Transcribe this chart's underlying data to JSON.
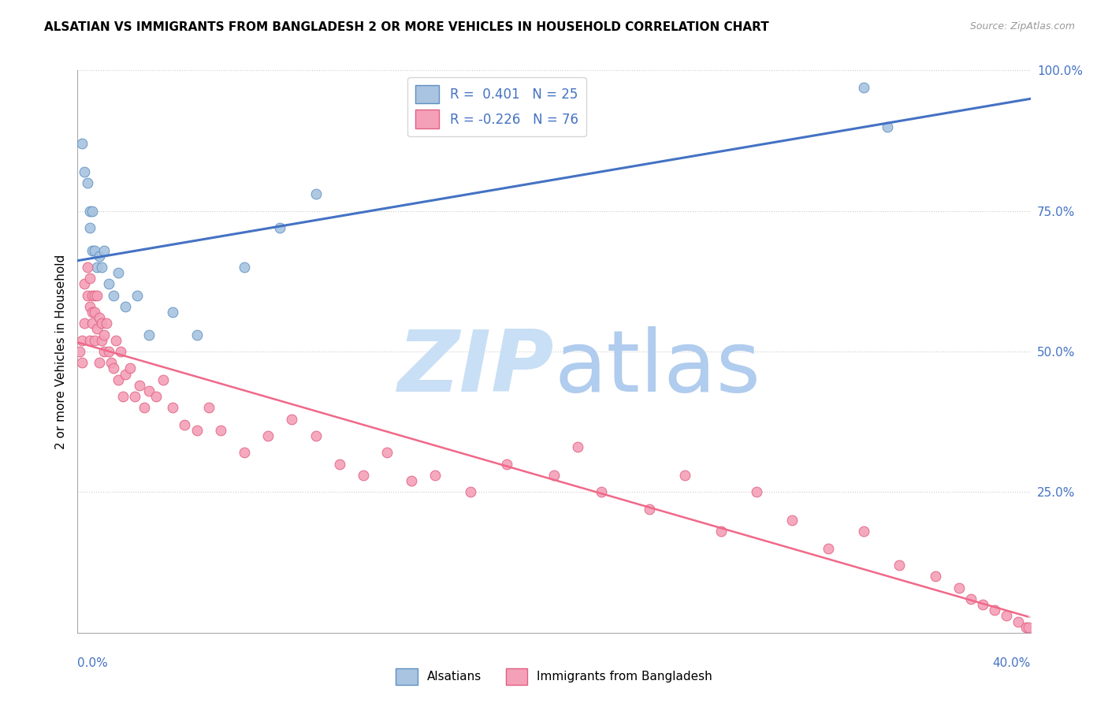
{
  "title": "ALSATIAN VS IMMIGRANTS FROM BANGLADESH 2 OR MORE VEHICLES IN HOUSEHOLD CORRELATION CHART",
  "source": "Source: ZipAtlas.com",
  "legend_label_blue": "Alsatians",
  "legend_label_pink": "Immigrants from Bangladesh",
  "blue_scatter_color": "#a8c4e0",
  "blue_scatter_edge": "#6090c0",
  "pink_scatter_color": "#f4a0b8",
  "pink_scatter_edge": "#e06080",
  "blue_line_color": "#4472c4",
  "pink_line_color": "#f06888",
  "pink_dashed_color": "#f0b0c8",
  "text_color": "#4472c4",
  "watermark_zip_color": "#c8dff5",
  "watermark_atlas_color": "#b0ccee",
  "xlim": [
    0.0,
    0.4
  ],
  "ylim": [
    0.0,
    1.0
  ],
  "blue_x": [
    0.002,
    0.003,
    0.004,
    0.005,
    0.005,
    0.006,
    0.006,
    0.007,
    0.008,
    0.009,
    0.01,
    0.011,
    0.013,
    0.015,
    0.017,
    0.02,
    0.025,
    0.03,
    0.04,
    0.05,
    0.07,
    0.085,
    0.1,
    0.33,
    0.34
  ],
  "blue_y": [
    0.87,
    0.82,
    0.8,
    0.75,
    0.72,
    0.75,
    0.68,
    0.68,
    0.65,
    0.67,
    0.65,
    0.68,
    0.62,
    0.6,
    0.64,
    0.58,
    0.6,
    0.53,
    0.57,
    0.53,
    0.65,
    0.72,
    0.78,
    0.97,
    0.9
  ],
  "pink_x": [
    0.001,
    0.002,
    0.002,
    0.003,
    0.003,
    0.004,
    0.004,
    0.005,
    0.005,
    0.005,
    0.006,
    0.006,
    0.006,
    0.007,
    0.007,
    0.007,
    0.008,
    0.008,
    0.009,
    0.009,
    0.01,
    0.01,
    0.011,
    0.011,
    0.012,
    0.013,
    0.014,
    0.015,
    0.016,
    0.017,
    0.018,
    0.019,
    0.02,
    0.022,
    0.024,
    0.026,
    0.028,
    0.03,
    0.033,
    0.036,
    0.04,
    0.045,
    0.05,
    0.055,
    0.06,
    0.07,
    0.08,
    0.09,
    0.1,
    0.11,
    0.12,
    0.13,
    0.14,
    0.15,
    0.165,
    0.18,
    0.2,
    0.21,
    0.22,
    0.24,
    0.255,
    0.27,
    0.285,
    0.3,
    0.315,
    0.33,
    0.345,
    0.36,
    0.37,
    0.375,
    0.38,
    0.385,
    0.39,
    0.395,
    0.398,
    0.399
  ],
  "pink_y": [
    0.5,
    0.52,
    0.48,
    0.62,
    0.55,
    0.6,
    0.65,
    0.58,
    0.52,
    0.63,
    0.57,
    0.6,
    0.55,
    0.57,
    0.52,
    0.6,
    0.54,
    0.6,
    0.56,
    0.48,
    0.52,
    0.55,
    0.5,
    0.53,
    0.55,
    0.5,
    0.48,
    0.47,
    0.52,
    0.45,
    0.5,
    0.42,
    0.46,
    0.47,
    0.42,
    0.44,
    0.4,
    0.43,
    0.42,
    0.45,
    0.4,
    0.37,
    0.36,
    0.4,
    0.36,
    0.32,
    0.35,
    0.38,
    0.35,
    0.3,
    0.28,
    0.32,
    0.27,
    0.28,
    0.25,
    0.3,
    0.28,
    0.33,
    0.25,
    0.22,
    0.28,
    0.18,
    0.25,
    0.2,
    0.15,
    0.18,
    0.12,
    0.1,
    0.08,
    0.06,
    0.05,
    0.04,
    0.03,
    0.02,
    0.01,
    0.01
  ]
}
